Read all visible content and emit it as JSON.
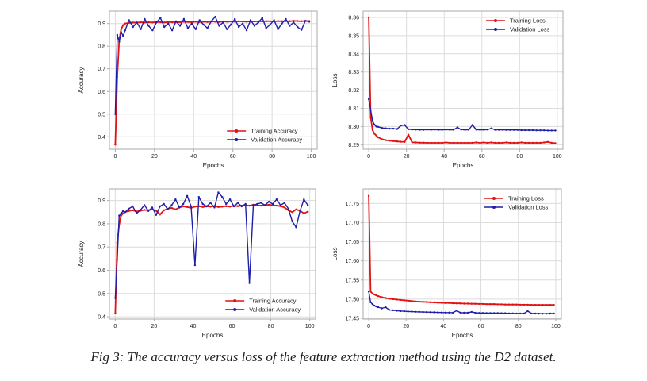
{
  "figure": {
    "caption": "Fig 3: The accuracy versus loss of the feature extraction method using the D2 dataset."
  },
  "colors": {
    "training": "#e31212",
    "validation": "#1e1eaa",
    "grid": "#dcdcdc",
    "spine": "#aaaaaa",
    "text": "#1a1a1a"
  },
  "chart_data": [
    {
      "type": "line",
      "name": "accuracy-d2-run1",
      "xlabel": "Epochs",
      "ylabel": "Accuracy",
      "xlim": [
        -3,
        103
      ],
      "ylim": [
        0.345,
        0.955
      ],
      "xticks": {
        "values": [
          0,
          20,
          40,
          60,
          80,
          100
        ],
        "labels": [
          "0",
          "20",
          "40",
          "60",
          "80",
          "100"
        ]
      },
      "yticks": {
        "values": [
          0.4,
          0.5,
          0.6,
          0.7,
          0.8,
          0.9
        ],
        "labels": [
          "0.4",
          "0.5",
          "0.6",
          "0.7",
          "0.8",
          "0.9"
        ]
      },
      "grid": true,
      "legend": {
        "loc": "lower-right",
        "entries": [
          "Training Accuracy",
          "Validation Accuracy"
        ]
      },
      "x": [
        0,
        1,
        2,
        3,
        4,
        5,
        7,
        9,
        11,
        13,
        15,
        17,
        19,
        21,
        23,
        25,
        27,
        29,
        31,
        33,
        35,
        37,
        39,
        41,
        43,
        45,
        47,
        49,
        51,
        53,
        55,
        57,
        59,
        61,
        63,
        65,
        67,
        69,
        71,
        73,
        75,
        77,
        79,
        81,
        83,
        85,
        87,
        89,
        91,
        93,
        95,
        97,
        99
      ],
      "series": [
        {
          "name": "Training Accuracy",
          "color": "#e31212",
          "values": [
            0.365,
            0.665,
            0.83,
            0.875,
            0.893,
            0.9,
            0.903,
            0.905,
            0.904,
            0.906,
            0.905,
            0.906,
            0.905,
            0.907,
            0.906,
            0.905,
            0.907,
            0.906,
            0.907,
            0.906,
            0.908,
            0.907,
            0.906,
            0.908,
            0.907,
            0.908,
            0.907,
            0.909,
            0.908,
            0.907,
            0.909,
            0.908,
            0.909,
            0.908,
            0.91,
            0.909,
            0.908,
            0.91,
            0.909,
            0.91,
            0.909,
            0.911,
            0.91,
            0.909,
            0.911,
            0.91,
            0.911,
            0.91,
            0.912,
            0.911,
            0.91,
            0.912,
            0.911
          ]
        },
        {
          "name": "Validation Accuracy",
          "color": "#1e1eaa",
          "values": [
            0.5,
            0.85,
            0.82,
            0.862,
            0.845,
            0.87,
            0.915,
            0.885,
            0.905,
            0.875,
            0.92,
            0.89,
            0.87,
            0.905,
            0.925,
            0.885,
            0.9,
            0.87,
            0.91,
            0.89,
            0.92,
            0.88,
            0.9,
            0.875,
            0.915,
            0.895,
            0.88,
            0.91,
            0.93,
            0.89,
            0.905,
            0.875,
            0.895,
            0.92,
            0.885,
            0.9,
            0.87,
            0.915,
            0.89,
            0.905,
            0.925,
            0.88,
            0.895,
            0.915,
            0.875,
            0.9,
            0.92,
            0.89,
            0.905,
            0.885,
            0.872,
            0.912,
            0.908
          ]
        }
      ]
    },
    {
      "type": "line",
      "name": "loss-d2-run1",
      "xlabel": "Epochs",
      "ylabel": "Loss",
      "xlim": [
        -3,
        103
      ],
      "ylim": [
        8.2875,
        8.3635
      ],
      "xticks": {
        "values": [
          0,
          20,
          40,
          60,
          80,
          100
        ],
        "labels": [
          "0",
          "20",
          "40",
          "60",
          "80",
          "100"
        ]
      },
      "yticks": {
        "values": [
          8.29,
          8.3,
          8.31,
          8.32,
          8.33,
          8.34,
          8.35,
          8.36
        ],
        "labels": [
          "8.29",
          "8.30",
          "8.31",
          "8.32",
          "8.33",
          "8.34",
          "8.35",
          "8.36"
        ]
      },
      "grid": true,
      "legend": {
        "loc": "upper-right",
        "entries": [
          "Training Loss",
          "Validation Loss"
        ]
      },
      "x": [
        0,
        1,
        2,
        3,
        4,
        5,
        7,
        9,
        11,
        13,
        15,
        17,
        19,
        21,
        23,
        25,
        27,
        29,
        31,
        33,
        35,
        37,
        39,
        41,
        43,
        45,
        47,
        49,
        51,
        53,
        55,
        57,
        59,
        61,
        63,
        65,
        67,
        69,
        71,
        73,
        75,
        77,
        79,
        81,
        83,
        85,
        87,
        89,
        91,
        93,
        95,
        97,
        99
      ],
      "series": [
        {
          "name": "Training Loss",
          "color": "#e31212",
          "values": [
            8.36,
            8.305,
            8.298,
            8.296,
            8.295,
            8.294,
            8.293,
            8.2925,
            8.2922,
            8.292,
            8.2918,
            8.2916,
            8.2915,
            8.2955,
            8.2913,
            8.2912,
            8.2911,
            8.2911,
            8.291,
            8.291,
            8.291,
            8.291,
            8.291,
            8.2912,
            8.291,
            8.291,
            8.291,
            8.291,
            8.291,
            8.291,
            8.291,
            8.2912,
            8.291,
            8.2912,
            8.291,
            8.2912,
            8.291,
            8.291,
            8.291,
            8.2912,
            8.291,
            8.291,
            8.291,
            8.2912,
            8.291,
            8.291,
            8.291,
            8.291,
            8.291,
            8.2912,
            8.2915,
            8.291,
            8.2908
          ]
        },
        {
          "name": "Validation Loss",
          "color": "#1e1eaa",
          "values": [
            8.315,
            8.309,
            8.303,
            8.301,
            8.3,
            8.2998,
            8.2992,
            8.299,
            8.2988,
            8.2988,
            8.2986,
            8.3005,
            8.3008,
            8.2985,
            8.2983,
            8.2983,
            8.2982,
            8.2982,
            8.2983,
            8.2982,
            8.2983,
            8.2982,
            8.2982,
            8.2983,
            8.2982,
            8.2982,
            8.2995,
            8.2983,
            8.2982,
            8.2982,
            8.3008,
            8.2983,
            8.2982,
            8.2982,
            8.2983,
            8.299,
            8.2982,
            8.2982,
            8.2982,
            8.2981,
            8.2981,
            8.2981,
            8.2981,
            8.298,
            8.298,
            8.298,
            8.298,
            8.2979,
            8.2979,
            8.2979,
            8.2978,
            8.2978,
            8.2978
          ]
        }
      ]
    },
    {
      "type": "line",
      "name": "accuracy-d2-run2",
      "xlabel": "Epochs",
      "ylabel": "Accuracy",
      "xlim": [
        -3,
        103
      ],
      "ylim": [
        0.39,
        0.95
      ],
      "xticks": {
        "values": [
          0,
          20,
          40,
          60,
          80,
          100
        ],
        "labels": [
          "0",
          "20",
          "40",
          "60",
          "80",
          "100"
        ]
      },
      "yticks": {
        "values": [
          0.4,
          0.5,
          0.6,
          0.7,
          0.8,
          0.9
        ],
        "labels": [
          "0.4",
          "0.5",
          "0.6",
          "0.7",
          "0.8",
          "0.9"
        ]
      },
      "grid": true,
      "legend": {
        "loc": "lower-right",
        "entries": [
          "Training Accuracy",
          "Validation Accuracy"
        ]
      },
      "x": [
        0,
        1,
        2,
        3,
        4,
        5,
        7,
        9,
        11,
        13,
        15,
        17,
        19,
        21,
        23,
        25,
        27,
        29,
        31,
        33,
        35,
        37,
        39,
        41,
        43,
        45,
        47,
        49,
        51,
        53,
        55,
        57,
        59,
        61,
        63,
        65,
        67,
        69,
        71,
        73,
        75,
        77,
        79,
        81,
        83,
        85,
        87,
        89,
        91,
        93,
        95,
        97,
        99
      ],
      "series": [
        {
          "name": "Training Accuracy",
          "color": "#e31212",
          "values": [
            0.415,
            0.72,
            0.795,
            0.835,
            0.845,
            0.85,
            0.855,
            0.858,
            0.853,
            0.856,
            0.86,
            0.858,
            0.862,
            0.856,
            0.84,
            0.858,
            0.865,
            0.868,
            0.862,
            0.87,
            0.875,
            0.872,
            0.868,
            0.874,
            0.876,
            0.872,
            0.875,
            0.874,
            0.876,
            0.872,
            0.874,
            0.876,
            0.874,
            0.877,
            0.876,
            0.878,
            0.88,
            0.878,
            0.882,
            0.88,
            0.878,
            0.88,
            0.882,
            0.88,
            0.878,
            0.876,
            0.87,
            0.858,
            0.85,
            0.862,
            0.856,
            0.845,
            0.852
          ]
        },
        {
          "name": "Validation Accuracy",
          "color": "#1e1eaa",
          "values": [
            0.48,
            0.645,
            0.835,
            0.845,
            0.855,
            0.85,
            0.865,
            0.875,
            0.845,
            0.86,
            0.88,
            0.855,
            0.87,
            0.838,
            0.875,
            0.885,
            0.862,
            0.88,
            0.905,
            0.87,
            0.885,
            0.92,
            0.875,
            0.622,
            0.915,
            0.885,
            0.875,
            0.89,
            0.87,
            0.935,
            0.915,
            0.885,
            0.905,
            0.875,
            0.89,
            0.875,
            0.885,
            0.545,
            0.88,
            0.885,
            0.89,
            0.88,
            0.895,
            0.885,
            0.905,
            0.88,
            0.89,
            0.865,
            0.81,
            0.785,
            0.855,
            0.905,
            0.88
          ]
        }
      ]
    },
    {
      "type": "line",
      "name": "loss-d2-run2",
      "xlabel": "Epochs",
      "ylabel": "Loss",
      "xlim": [
        -3,
        103
      ],
      "ylim": [
        17.448,
        17.788
      ],
      "xticks": {
        "values": [
          0,
          20,
          40,
          60,
          80,
          100
        ],
        "labels": [
          "0",
          "20",
          "40",
          "60",
          "80",
          "100"
        ]
      },
      "yticks": {
        "values": [
          17.45,
          17.5,
          17.55,
          17.6,
          17.65,
          17.7,
          17.75
        ],
        "labels": [
          "17.45",
          "17.50",
          "17.55",
          "17.60",
          "17.65",
          "17.70",
          "17.75"
        ]
      },
      "grid": true,
      "legend": {
        "loc": "upper-right",
        "entries": [
          "Training Loss",
          "Validation Loss"
        ]
      },
      "x": [
        0,
        1,
        2,
        3,
        4,
        5,
        7,
        9,
        11,
        13,
        15,
        17,
        19,
        21,
        23,
        25,
        27,
        29,
        31,
        33,
        35,
        37,
        39,
        41,
        43,
        45,
        47,
        49,
        51,
        53,
        55,
        57,
        59,
        61,
        63,
        65,
        67,
        69,
        71,
        73,
        75,
        77,
        79,
        81,
        83,
        85,
        87,
        89,
        91,
        93,
        95,
        97,
        99
      ],
      "series": [
        {
          "name": "Training Loss",
          "color": "#e31212",
          "values": [
            17.77,
            17.52,
            17.515,
            17.512,
            17.51,
            17.508,
            17.505,
            17.503,
            17.501,
            17.5,
            17.499,
            17.498,
            17.497,
            17.496,
            17.495,
            17.494,
            17.4935,
            17.493,
            17.4925,
            17.492,
            17.4915,
            17.491,
            17.4905,
            17.49,
            17.49,
            17.4895,
            17.489,
            17.489,
            17.4885,
            17.4885,
            17.488,
            17.488,
            17.4875,
            17.4875,
            17.487,
            17.487,
            17.487,
            17.4865,
            17.4865,
            17.486,
            17.486,
            17.486,
            17.486,
            17.4855,
            17.4855,
            17.4855,
            17.485,
            17.485,
            17.485,
            17.485,
            17.4848,
            17.4848,
            17.4848
          ]
        },
        {
          "name": "Validation Loss",
          "color": "#1e1eaa",
          "values": [
            17.52,
            17.492,
            17.487,
            17.483,
            17.481,
            17.479,
            17.476,
            17.479,
            17.472,
            17.471,
            17.47,
            17.469,
            17.4685,
            17.468,
            17.4675,
            17.467,
            17.4668,
            17.4665,
            17.4662,
            17.466,
            17.4658,
            17.4655,
            17.4652,
            17.465,
            17.465,
            17.4648,
            17.47,
            17.4648,
            17.4645,
            17.4645,
            17.4668,
            17.4643,
            17.464,
            17.464,
            17.4638,
            17.4638,
            17.4635,
            17.4635,
            17.4633,
            17.4633,
            17.463,
            17.463,
            17.4628,
            17.4628,
            17.4625,
            17.469,
            17.4628,
            17.4625,
            17.4623,
            17.4622,
            17.462,
            17.4625,
            17.4628
          ]
        }
      ]
    }
  ]
}
